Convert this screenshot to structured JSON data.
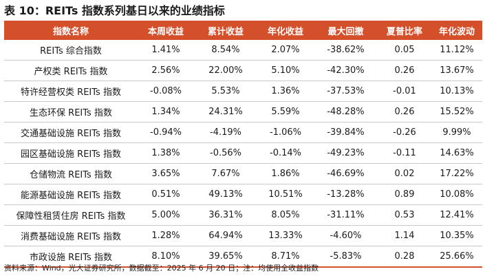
{
  "title": "表 10：REITs 指数系列基日以来的业绩指标",
  "table": {
    "headers": [
      "指数名称",
      "本周收益",
      "累计收益",
      "年化收益",
      "最大回撤",
      "夏普比率",
      "年化波动"
    ],
    "rows": [
      [
        "REITs 综合指数",
        "1.41%",
        "8.54%",
        "2.07%",
        "-38.62%",
        "0.05",
        "11.12%"
      ],
      [
        "产权类 REITs 指数",
        "2.56%",
        "22.00%",
        "5.10%",
        "-42.30%",
        "0.26",
        "13.67%"
      ],
      [
        "特许经营权类 REITs 指数",
        "-0.08%",
        "5.53%",
        "1.36%",
        "-37.53%",
        "-0.01",
        "10.13%"
      ],
      [
        "生态环保 REITs 指数",
        "1.34%",
        "24.31%",
        "5.59%",
        "-48.28%",
        "0.26",
        "15.52%"
      ],
      [
        "交通基础设施 REITs 指数",
        "-0.94%",
        "-4.19%",
        "-1.06%",
        "-39.84%",
        "-0.26",
        "9.99%"
      ],
      [
        "园区基础设施 REITs 指数",
        "1.38%",
        "-0.56%",
        "-0.14%",
        "-49.23%",
        "-0.11",
        "14.63%"
      ],
      [
        "仓储物流 REITs 指数",
        "3.65%",
        "7.67%",
        "1.86%",
        "-46.69%",
        "0.02",
        "17.22%"
      ],
      [
        "能源基础设施 REITs 指数",
        "0.51%",
        "49.13%",
        "10.51%",
        "-13.28%",
        "0.89",
        "10.08%"
      ],
      [
        "保障性租赁住房 REITs 指数",
        "5.00%",
        "36.31%",
        "8.05%",
        "-31.11%",
        "0.53",
        "12.41%"
      ],
      [
        "消费基础设施 REITs 指数",
        "1.28%",
        "64.94%",
        "13.33%",
        "-4.60%",
        "1.14",
        "10.35%"
      ],
      [
        "市政设施 REITs 指数",
        "8.10%",
        "39.65%",
        "8.71%",
        "-5.83%",
        "0.28",
        "25.66%"
      ]
    ]
  },
  "footnote": "资料来源：Wind，光大证券研究所，数据截至：2025 年 6 月 20 日；注：均使用全收益指数",
  "colors": {
    "header_bg": "#d4502b",
    "header_text": "#ffffff",
    "row_divider": "#c7c7c7"
  }
}
